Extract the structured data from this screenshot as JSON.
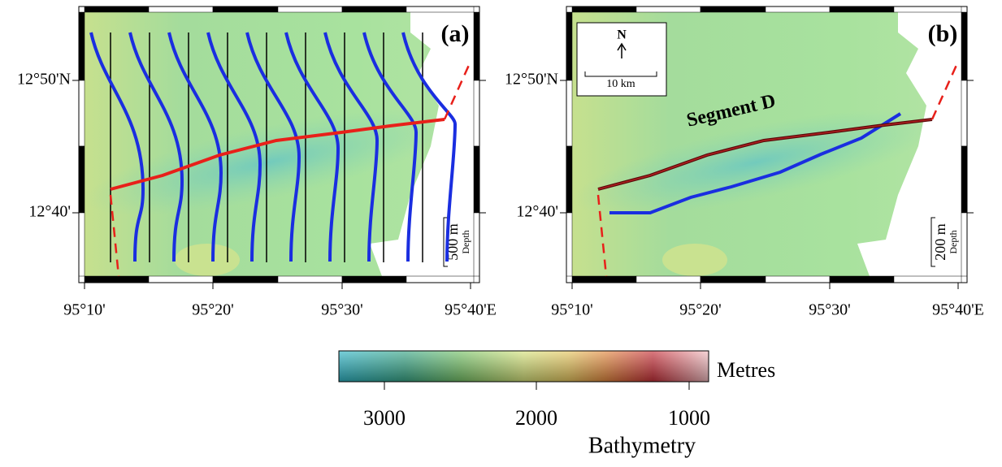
{
  "panels": [
    {
      "label": "(a)",
      "lon_ticks": [
        "95°10'",
        "95°20'",
        "95°30'",
        "95°40'E"
      ],
      "lat_ticks": [
        "12°40'",
        "12°50'N"
      ],
      "depth_scale": "500 m",
      "depth_label": "Depth"
    },
    {
      "label": "(b)",
      "lon_ticks": [
        "95°10'",
        "95°20'",
        "95°30'",
        "95°40'E"
      ],
      "lat_ticks": [
        "12°40'",
        "12°50'N"
      ],
      "depth_scale": "200 m",
      "depth_label": "Depth",
      "north": "N",
      "scale_bar": "10 km",
      "annotation": "Segment D"
    }
  ],
  "colorbar": {
    "ticks": [
      "3000",
      "2000",
      "1000"
    ],
    "unit": "Metres",
    "title": "Bathymetry"
  }
}
